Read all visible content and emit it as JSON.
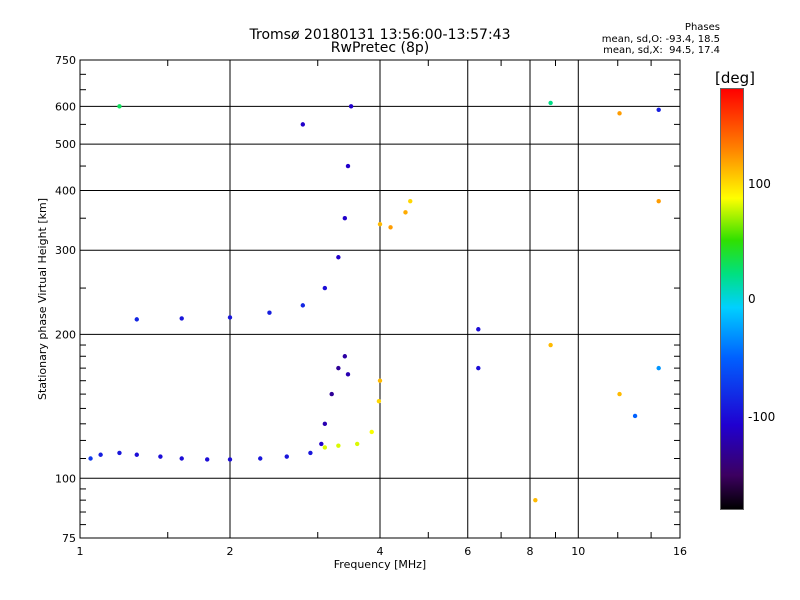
{
  "header": {
    "title_line1": "Tromsø 20180131 13:56:00-13:57:43",
    "title_line2": "RwPretec (8p)",
    "stats_title": "Phases",
    "stats_o": "mean, sd,O: -93.4, 18.5",
    "stats_x": "mean, sd,X:  94.5, 17.4"
  },
  "colorbar": {
    "unit": "[deg]",
    "tick_labels": [
      "100",
      "0",
      "-100"
    ],
    "tick_values": [
      100,
      0,
      -100
    ],
    "range": [
      -180,
      180
    ]
  },
  "chart_data": {
    "type": "scatter",
    "title": "Tromsø 20180131 13:56:00-13:57:43",
    "subtitle": "RwPretec (8p)",
    "xlabel": "Frequency [MHz]",
    "ylabel": "Stationary phase Virtual Height [km]",
    "x_scale": "log",
    "y_scale": "log",
    "xlim": [
      1,
      16
    ],
    "ylim": [
      75,
      750
    ],
    "x_ticks": [
      1,
      2,
      4,
      6,
      8,
      10,
      16
    ],
    "x_tick_labels": [
      "1",
      "2",
      "4",
      "6",
      "8",
      "10",
      "16"
    ],
    "y_ticks": [
      75,
      100,
      200,
      300,
      400,
      500,
      600,
      750
    ],
    "y_tick_labels": [
      "75",
      "100",
      "200",
      "300",
      "400",
      "500",
      "600",
      "750"
    ],
    "grid": true,
    "colorbar_range": [
      -180,
      180
    ],
    "series": [
      {
        "values": [
          {
            "x": 1.05,
            "y": 110,
            "phase": -75
          },
          {
            "x": 1.1,
            "y": 112,
            "phase": -90
          },
          {
            "x": 1.2,
            "y": 113,
            "phase": -95
          },
          {
            "x": 1.3,
            "y": 112,
            "phase": -100
          },
          {
            "x": 1.45,
            "y": 111,
            "phase": -100
          },
          {
            "x": 1.6,
            "y": 110,
            "phase": -100
          },
          {
            "x": 1.8,
            "y": 109.5,
            "phase": -100
          },
          {
            "x": 2.0,
            "y": 109.5,
            "phase": -100
          },
          {
            "x": 2.3,
            "y": 110,
            "phase": -95
          },
          {
            "x": 2.6,
            "y": 111,
            "phase": -95
          },
          {
            "x": 2.9,
            "y": 113,
            "phase": -95
          },
          {
            "x": 3.05,
            "y": 118,
            "phase": -110
          }
        ]
      },
      {
        "values": [
          {
            "x": 3.1,
            "y": 130,
            "phase": -120
          },
          {
            "x": 3.2,
            "y": 150,
            "phase": -130
          },
          {
            "x": 3.3,
            "y": 170,
            "phase": -130
          },
          {
            "x": 3.4,
            "y": 180,
            "phase": -125
          },
          {
            "x": 3.45,
            "y": 165,
            "phase": -120
          }
        ]
      },
      {
        "values": [
          {
            "x": 3.1,
            "y": 116,
            "phase": 80
          },
          {
            "x": 3.3,
            "y": 117,
            "phase": 80
          },
          {
            "x": 3.6,
            "y": 118,
            "phase": 80
          },
          {
            "x": 3.85,
            "y": 125,
            "phase": 85
          },
          {
            "x": 3.98,
            "y": 145,
            "phase": 100
          },
          {
            "x": 4.0,
            "y": 160,
            "phase": 110
          }
        ]
      },
      {
        "values": [
          {
            "x": 1.3,
            "y": 215,
            "phase": -85
          },
          {
            "x": 1.6,
            "y": 216,
            "phase": -95
          },
          {
            "x": 2.0,
            "y": 217,
            "phase": -95
          },
          {
            "x": 2.4,
            "y": 222,
            "phase": -90
          },
          {
            "x": 2.8,
            "y": 230,
            "phase": -85
          },
          {
            "x": 3.1,
            "y": 250,
            "phase": -100
          },
          {
            "x": 3.3,
            "y": 290,
            "phase": -110
          },
          {
            "x": 3.4,
            "y": 350,
            "phase": -110
          },
          {
            "x": 3.45,
            "y": 450,
            "phase": -110
          },
          {
            "x": 3.5,
            "y": 600,
            "phase": -110
          }
        ]
      },
      {
        "values": [
          {
            "x": 4.0,
            "y": 340,
            "phase": 110
          },
          {
            "x": 4.2,
            "y": 335,
            "phase": 120
          },
          {
            "x": 4.5,
            "y": 360,
            "phase": 115
          },
          {
            "x": 4.6,
            "y": 380,
            "phase": 100
          }
        ]
      },
      {
        "values": [
          {
            "x": 1.2,
            "y": 600,
            "phase": 30
          },
          {
            "x": 2.8,
            "y": 550,
            "phase": -110
          },
          {
            "x": 6.3,
            "y": 205,
            "phase": -100
          },
          {
            "x": 6.3,
            "y": 170,
            "phase": -100
          },
          {
            "x": 8.8,
            "y": 190,
            "phase": 110
          },
          {
            "x": 8.8,
            "y": 610,
            "phase": 20
          },
          {
            "x": 8.2,
            "y": 90,
            "phase": 110
          },
          {
            "x": 12.1,
            "y": 580,
            "phase": 120
          },
          {
            "x": 12.1,
            "y": 150,
            "phase": 110
          },
          {
            "x": 14.5,
            "y": 590,
            "phase": -90
          },
          {
            "x": 14.5,
            "y": 380,
            "phase": 120
          },
          {
            "x": 14.5,
            "y": 170,
            "phase": -30
          },
          {
            "x": 13.0,
            "y": 135,
            "phase": -50
          }
        ]
      }
    ]
  }
}
